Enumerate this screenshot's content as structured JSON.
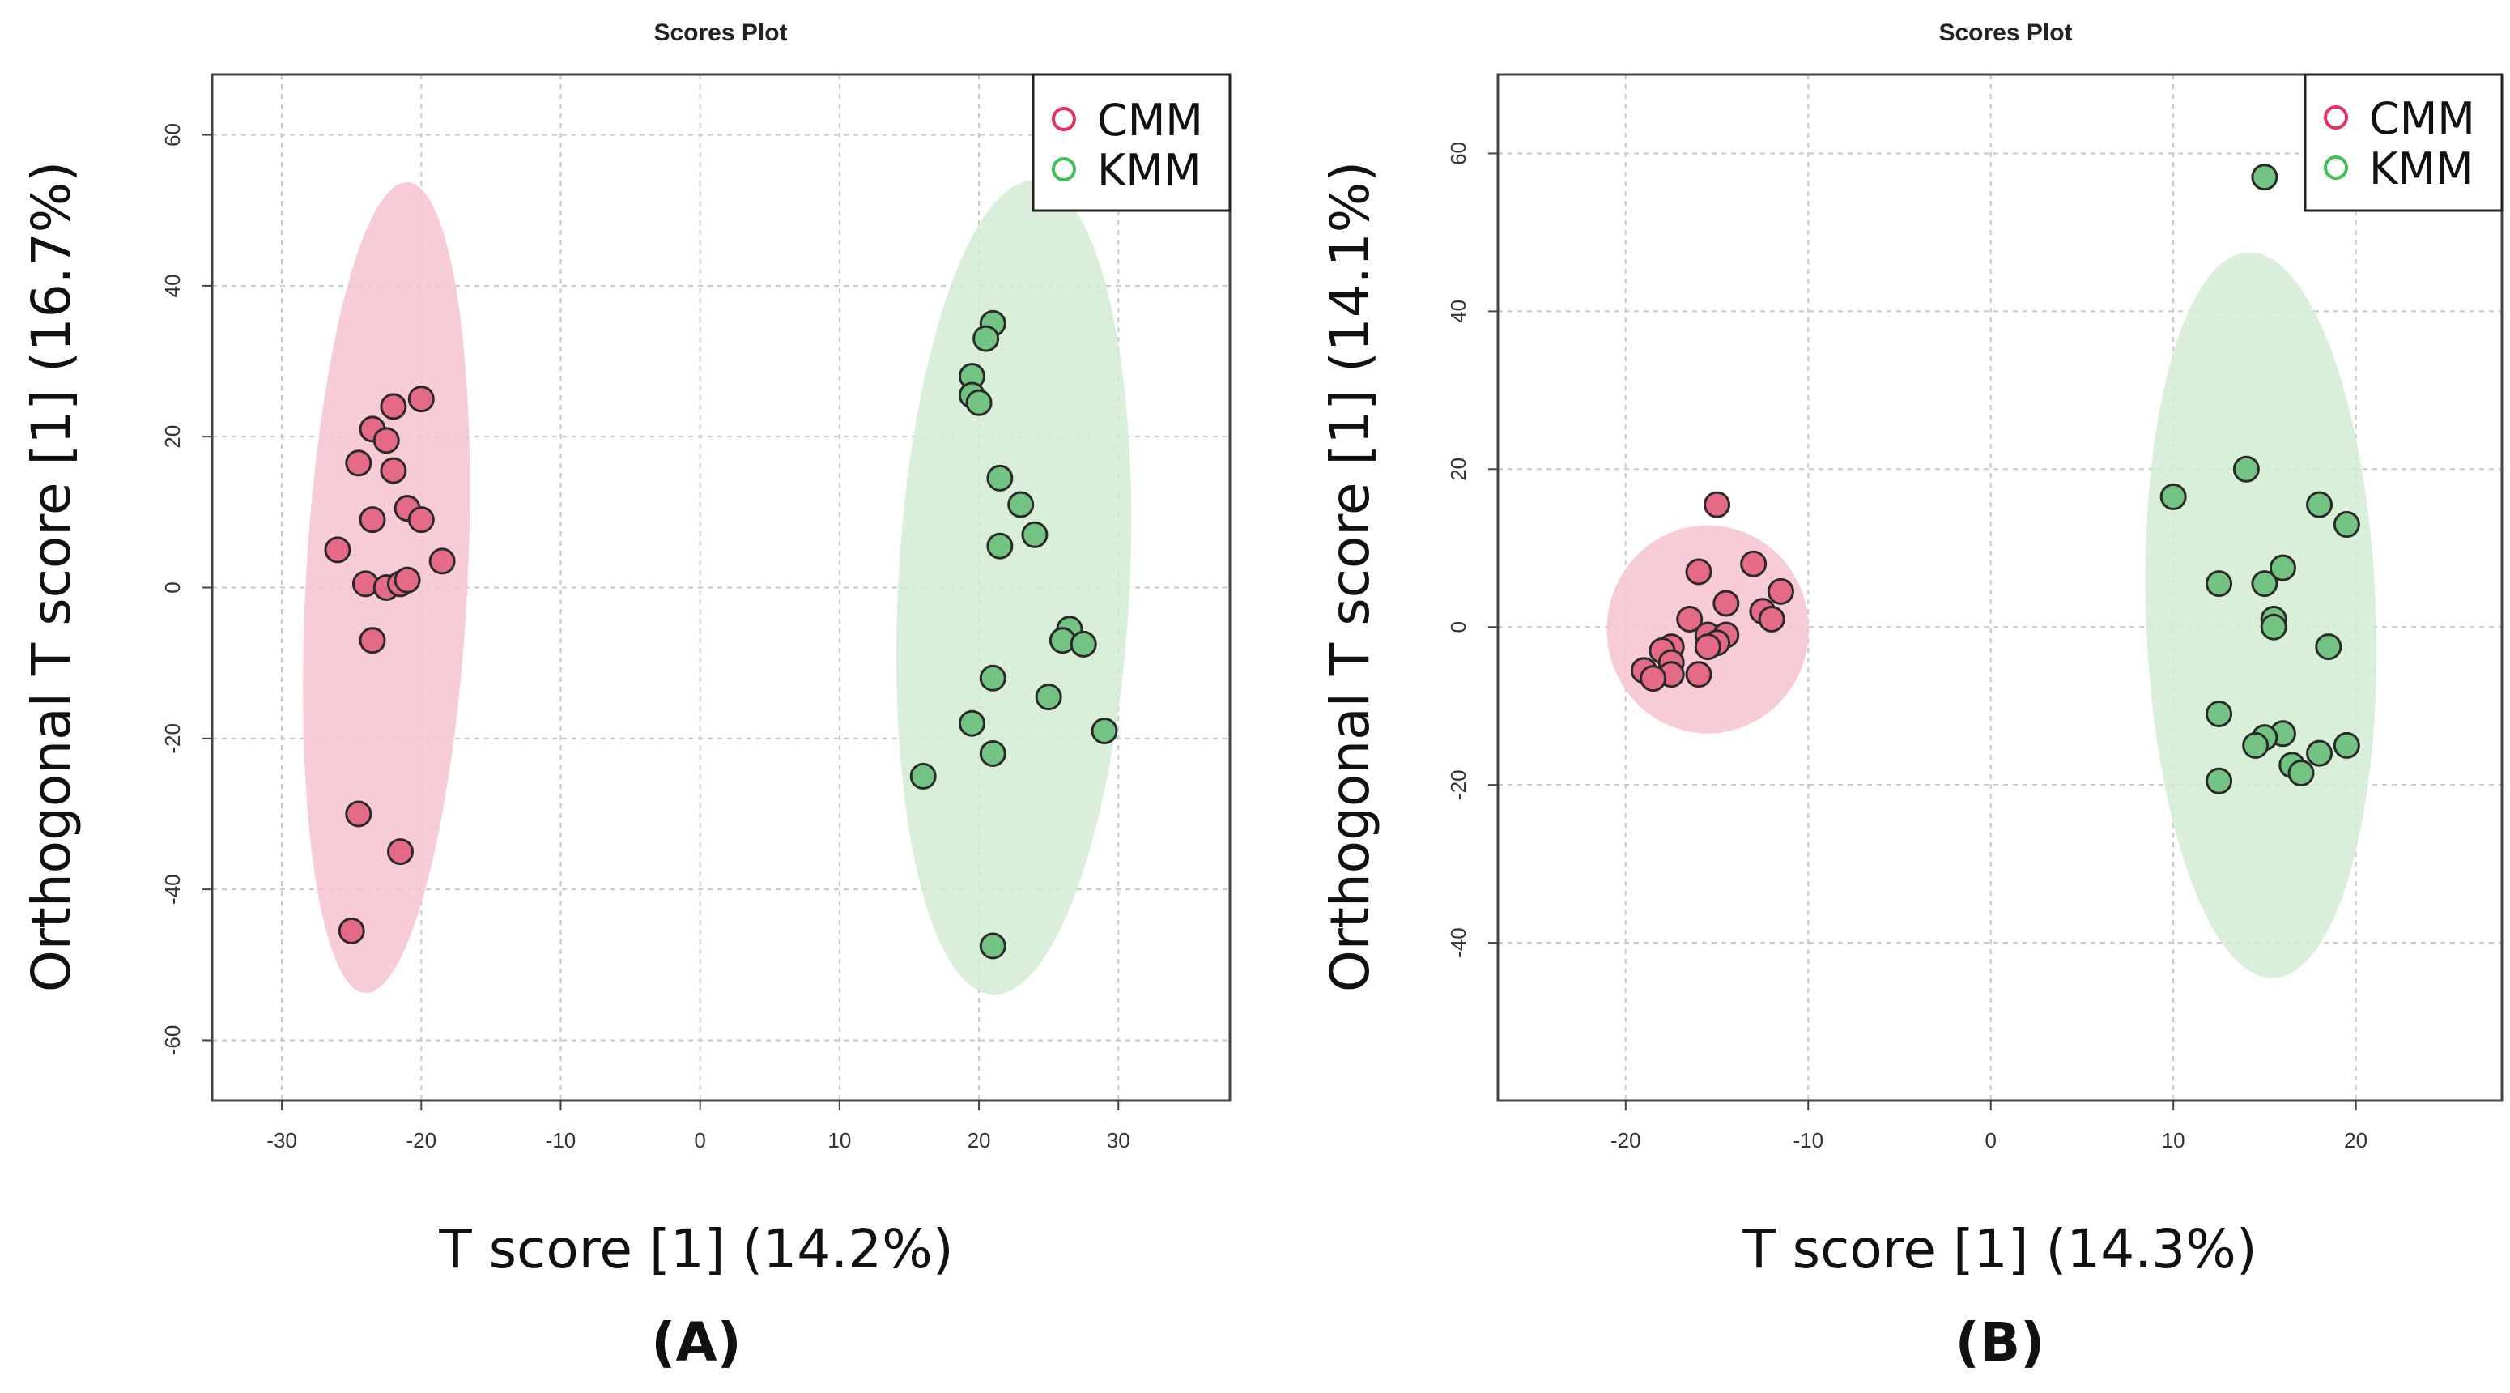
{
  "chart_data": [
    {
      "type": "scatter",
      "panel": "(A)",
      "title": "Scores Plot",
      "xlabel": "T score [1] (14.2%)",
      "ylabel": "Orthogonal T score [1] (16.7%)",
      "xlim": [
        -35,
        38
      ],
      "ylim": [
        -68,
        68
      ],
      "xticks": [
        -30,
        -20,
        -10,
        0,
        10,
        20,
        30
      ],
      "yticks": [
        60,
        40,
        20,
        0,
        -20,
        -40,
        -60
      ],
      "grid": true,
      "legend_position": "top-right",
      "series": [
        {
          "name": "CMM",
          "color": "#e8315f",
          "fill": "#e46a86",
          "ellipse": {
            "cx": -22.5,
            "cy": 0,
            "rx": 5.8,
            "ry": 53.8,
            "angle_deg": 3,
            "fill": "#f6c3cf"
          },
          "points": [
            [
              -20,
              25
            ],
            [
              -22,
              24
            ],
            [
              -23.5,
              21
            ],
            [
              -22.5,
              19.5
            ],
            [
              -24.5,
              16.5
            ],
            [
              -22,
              15.5
            ],
            [
              -21,
              10.5
            ],
            [
              -23.5,
              9
            ],
            [
              -20,
              9
            ],
            [
              -26,
              5
            ],
            [
              -18.5,
              3.5
            ],
            [
              -24,
              0.5
            ],
            [
              -22.5,
              0
            ],
            [
              -21.5,
              0.5
            ],
            [
              -21,
              1
            ],
            [
              -23.5,
              -7
            ],
            [
              -24.5,
              -30
            ],
            [
              -21.5,
              -35
            ],
            [
              -25,
              -45.5
            ]
          ]
        },
        {
          "name": "KMM",
          "color": "#3fbf55",
          "fill": "#73c383",
          "ellipse": {
            "cx": 22.5,
            "cy": 0,
            "rx": 8.3,
            "ry": 54,
            "angle_deg": 3,
            "fill": "#d2ecd2"
          },
          "points": [
            [
              21,
              35
            ],
            [
              20.5,
              33
            ],
            [
              19.5,
              28
            ],
            [
              19.5,
              25.5
            ],
            [
              20,
              24.5
            ],
            [
              21.5,
              14.5
            ],
            [
              23,
              11
            ],
            [
              24,
              7
            ],
            [
              21.5,
              5.5
            ],
            [
              26.5,
              -5.5
            ],
            [
              26,
              -7
            ],
            [
              27.5,
              -7.5
            ],
            [
              27.5,
              -7.5
            ],
            [
              21,
              -12
            ],
            [
              25,
              -14.5
            ],
            [
              19.5,
              -18
            ],
            [
              29,
              -19
            ],
            [
              21,
              -22
            ],
            [
              16,
              -25
            ],
            [
              21,
              -47.5
            ]
          ]
        }
      ]
    },
    {
      "type": "scatter",
      "panel": "(B)",
      "title": "Scores Plot",
      "xlabel": "T score [1] (14.3%)",
      "ylabel": "Orthogonal T score [1] (14.1%)",
      "xlim": [
        -27,
        28
      ],
      "ylim": [
        -60,
        70
      ],
      "xticks": [
        -20,
        -10,
        0,
        10,
        20
      ],
      "yticks": [
        60,
        40,
        20,
        0,
        -20,
        -40
      ],
      "grid": true,
      "legend_position": "top-right",
      "series": [
        {
          "name": "CMM",
          "color": "#e8315f",
          "fill": "#e46a86",
          "ellipse": {
            "cx": -15.5,
            "cy": -0.3,
            "rx": 5.7,
            "ry": 12.8,
            "angle_deg": 90,
            "fill": "#f6c3cf"
          },
          "points": [
            [
              -15,
              15.5
            ],
            [
              -16,
              7
            ],
            [
              -13,
              8
            ],
            [
              -11.5,
              4.5
            ],
            [
              -14.5,
              3
            ],
            [
              -16.5,
              1
            ],
            [
              -12.5,
              2
            ],
            [
              -12,
              1
            ],
            [
              -15.5,
              -1
            ],
            [
              -14.5,
              -1
            ],
            [
              -17.5,
              -2.5
            ],
            [
              -15,
              -2
            ],
            [
              -15.5,
              -2.5
            ],
            [
              -18,
              -3
            ],
            [
              -17.5,
              -4.5
            ],
            [
              -19,
              -5.5
            ],
            [
              -17.5,
              -6
            ],
            [
              -16,
              -6
            ],
            [
              -18.5,
              -6.5
            ]
          ]
        },
        {
          "name": "KMM",
          "color": "#3fbf55",
          "fill": "#73c383",
          "ellipse": {
            "cx": 14.8,
            "cy": 1.5,
            "rx": 6.3,
            "ry": 46,
            "angle_deg": -2,
            "fill": "#d2ecd2"
          },
          "points": [
            [
              15,
              57
            ],
            [
              14,
              20
            ],
            [
              10,
              16.5
            ],
            [
              18,
              15.5
            ],
            [
              19.5,
              13
            ],
            [
              16,
              7.5
            ],
            [
              12.5,
              5.5
            ],
            [
              15,
              5.5
            ],
            [
              15.5,
              1
            ],
            [
              15.5,
              0
            ],
            [
              18.5,
              -2.5
            ],
            [
              12.5,
              -11
            ],
            [
              16,
              -13.5
            ],
            [
              15,
              -14
            ],
            [
              14.5,
              -15
            ],
            [
              19.5,
              -15
            ],
            [
              18,
              -16
            ],
            [
              16.5,
              -17.5
            ],
            [
              17,
              -18.5
            ],
            [
              12.5,
              -19.5
            ]
          ]
        }
      ]
    }
  ]
}
